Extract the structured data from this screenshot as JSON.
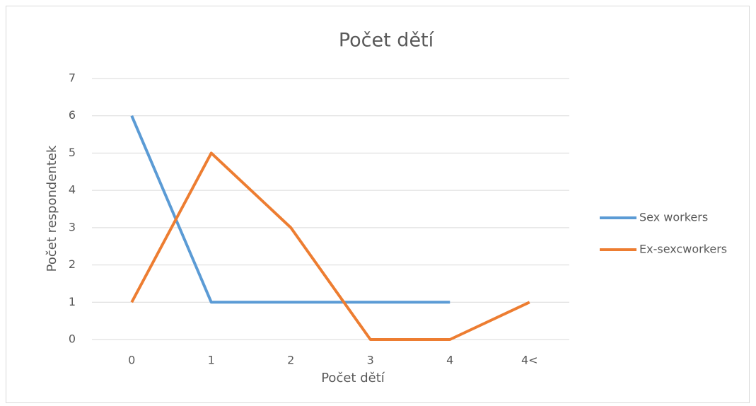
{
  "chart_data": {
    "type": "line",
    "title": "Počet dětí",
    "xlabel": "Počet dětí",
    "ylabel": "Počet respondentek",
    "categories": [
      "0",
      "1",
      "2",
      "3",
      "4",
      "4<"
    ],
    "series": [
      {
        "name": "Sex workers",
        "color": "#5b9bd5",
        "values": [
          6,
          1,
          1,
          1,
          1,
          null
        ]
      },
      {
        "name": "Ex-sexcworkers",
        "color": "#ed7d31",
        "values": [
          1,
          5,
          3,
          0,
          0,
          1
        ]
      }
    ],
    "ylim": [
      0,
      7
    ],
    "yticks": [
      0,
      1,
      2,
      3,
      4,
      5,
      6,
      7
    ],
    "grid": true,
    "legend": "right"
  }
}
